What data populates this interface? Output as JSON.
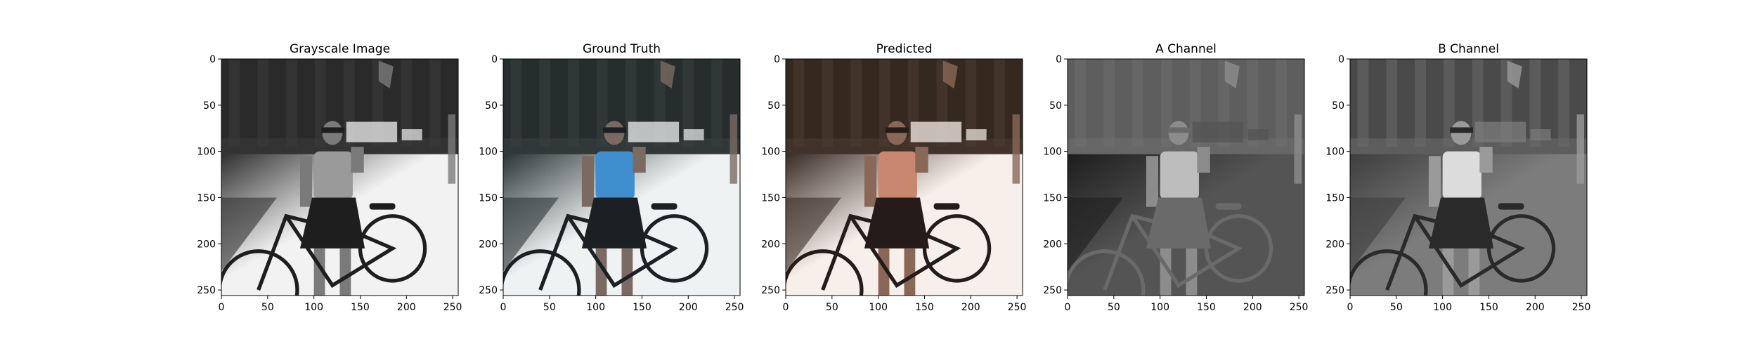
{
  "chart_data": [
    {
      "type": "image",
      "title": "Grayscale Image",
      "xticks": [
        0,
        50,
        100,
        150,
        200,
        250
      ],
      "yticks": [
        0,
        50,
        100,
        150,
        200,
        250
      ],
      "xlim": [
        0,
        256
      ],
      "ylim": [
        256,
        0
      ],
      "image_palette": {
        "sky": "#3a3a3a",
        "building": "#2a2a2a",
        "ground": "#f2f2f2",
        "shadow": "#303030",
        "figure": "#7a7a7a",
        "shirt": "#9a9a9a",
        "skirt": "#1e1e1e"
      }
    },
    {
      "type": "image",
      "title": "Ground Truth",
      "xticks": [
        0,
        50,
        100,
        150,
        200,
        250
      ],
      "yticks": [
        0,
        50,
        100,
        150,
        200,
        250
      ],
      "xlim": [
        0,
        256
      ],
      "ylim": [
        256,
        0
      ],
      "image_palette": {
        "sky": "#38403f",
        "building": "#262d2d",
        "ground": "#eef2f2",
        "shadow": "#2b3536",
        "figure": "#7b6a63",
        "shirt": "#3f8fcf",
        "skirt": "#1b2024"
      }
    },
    {
      "type": "image",
      "title": "Predicted",
      "xticks": [
        0,
        50,
        100,
        150,
        200,
        250
      ],
      "yticks": [
        0,
        50,
        100,
        150,
        200,
        250
      ],
      "xlim": [
        0,
        256
      ],
      "ylim": [
        256,
        0
      ],
      "image_palette": {
        "sky": "#4a3a33",
        "building": "#35281f",
        "ground": "#f7efea",
        "shadow": "#3a2d28",
        "figure": "#8a6858",
        "shirt": "#c98770",
        "skirt": "#251b18"
      }
    },
    {
      "type": "image",
      "title": "A Channel",
      "xticks": [
        0,
        50,
        100,
        150,
        200,
        250
      ],
      "yticks": [
        0,
        50,
        100,
        150,
        200,
        250
      ],
      "xlim": [
        0,
        256
      ],
      "ylim": [
        256,
        0
      ],
      "image_palette": {
        "sky": "#6e6e6e",
        "building": "#5e5e5e",
        "ground": "#545454",
        "shadow": "#1e1e1e",
        "figure": "#8c8c8c",
        "shirt": "#bdbdbd",
        "skirt": "#6a6a6a"
      }
    },
    {
      "type": "image",
      "title": "B Channel",
      "xticks": [
        0,
        50,
        100,
        150,
        200,
        250
      ],
      "yticks": [
        0,
        50,
        100,
        150,
        200,
        250
      ],
      "xlim": [
        0,
        256
      ],
      "ylim": [
        256,
        0
      ],
      "image_palette": {
        "sky": "#6a6a6a",
        "building": "#4a4a4a",
        "ground": "#7c7c7c",
        "shadow": "#3e3e3e",
        "figure": "#9a9a9a",
        "shirt": "#dcdcdc",
        "skirt": "#2a2a2a"
      }
    }
  ]
}
